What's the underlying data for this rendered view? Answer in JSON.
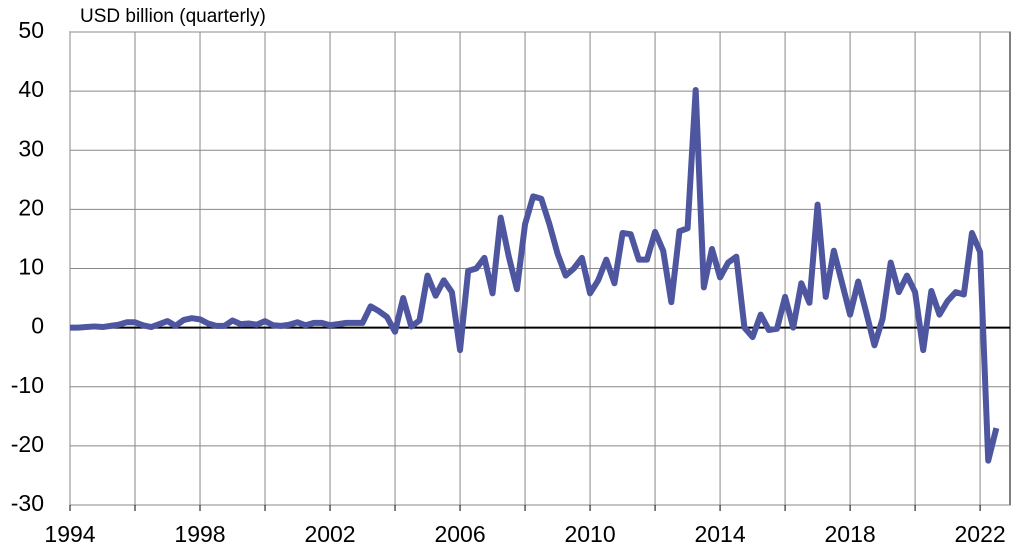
{
  "chart_data": {
    "type": "line",
    "title": "USD billion (quarterly)",
    "x": [
      1994,
      1994.25,
      1994.5,
      1994.75,
      1995,
      1995.25,
      1995.5,
      1995.75,
      1996,
      1996.25,
      1996.5,
      1996.75,
      1997,
      1997.25,
      1997.5,
      1997.75,
      1998,
      1998.25,
      1998.5,
      1998.75,
      1999,
      1999.25,
      1999.5,
      1999.75,
      2000,
      2000.25,
      2000.5,
      2000.75,
      2001,
      2001.25,
      2001.5,
      2001.75,
      2002,
      2002.25,
      2002.5,
      2002.75,
      2003,
      2003.25,
      2003.5,
      2003.75,
      2004,
      2004.25,
      2004.5,
      2004.75,
      2005,
      2005.25,
      2005.5,
      2005.75,
      2006,
      2006.25,
      2006.5,
      2006.75,
      2007,
      2007.25,
      2007.5,
      2007.75,
      2008,
      2008.25,
      2008.5,
      2008.75,
      2009,
      2009.25,
      2009.5,
      2009.75,
      2010,
      2010.25,
      2010.5,
      2010.75,
      2011,
      2011.25,
      2011.5,
      2011.75,
      2012,
      2012.25,
      2012.5,
      2012.75,
      2013,
      2013.25,
      2013.5,
      2013.75,
      2014,
      2014.25,
      2014.5,
      2014.75,
      2015,
      2015.25,
      2015.5,
      2015.75,
      2016,
      2016.25,
      2016.5,
      2016.75,
      2017,
      2017.25,
      2017.5,
      2017.75,
      2018,
      2018.25,
      2018.5,
      2018.75,
      2019,
      2019.25,
      2019.5,
      2019.75,
      2020,
      2020.25,
      2020.5,
      2020.75,
      2021,
      2021.25,
      2021.5,
      2021.75,
      2022,
      2022.25,
      2022.5
    ],
    "series": [
      {
        "color": "#4f56a0",
        "values": [
          0,
          0,
          0.1,
          0.2,
          0.1,
          0.3,
          0.5,
          0.9,
          0.9,
          0.4,
          0.1,
          0.6,
          1.1,
          0.3,
          1.3,
          1.6,
          1.4,
          0.7,
          0.3,
          0.3,
          1.2,
          0.6,
          0.7,
          0.5,
          1.1,
          0.4,
          0.3,
          0.5,
          0.9,
          0.4,
          0.8,
          0.8,
          0.4,
          0.6,
          0.8,
          0.8,
          0.8,
          3.6,
          2.8,
          1.8,
          -0.7,
          5.0,
          0.2,
          1.2,
          8.8,
          5.4,
          8.0,
          6.0,
          -3.8,
          9.6,
          10.0,
          11.8,
          5.8,
          18.6,
          12.0,
          6.5,
          17.5,
          22.2,
          21.8,
          17.5,
          12.5,
          8.8,
          10.0,
          11.8,
          5.8,
          8.0,
          11.5,
          7.5,
          16.0,
          15.8,
          11.5,
          11.5,
          16.2,
          13.0,
          4.3,
          16.3,
          16.8,
          40.2,
          6.8,
          13.3,
          8.5,
          11.0,
          12.0,
          0.0,
          -1.6,
          2.2,
          -0.4,
          -0.2,
          5.2,
          0.0,
          7.5,
          4.2,
          20.8,
          5.2,
          13.0,
          7.6,
          2.2,
          7.8,
          2.5,
          -3.0,
          1.5,
          11.0,
          6.0,
          8.8,
          6.0,
          -3.8,
          6.2,
          2.2,
          4.5,
          6.0,
          5.6,
          16.0,
          12.8,
          -22.5,
          -17.0
        ]
      }
    ],
    "xlim": [
      1994,
      2022.92
    ],
    "xticks": [
      1994,
      1998,
      2002,
      2006,
      2010,
      2014,
      2018,
      2022
    ],
    "xminor": [
      1996,
      2000,
      2004,
      2008,
      2012,
      2016,
      2020
    ],
    "ylim": [
      -30,
      50
    ],
    "yticks": [
      -30,
      -20,
      -10,
      0,
      10,
      20,
      30,
      40,
      50
    ],
    "grid": true
  }
}
